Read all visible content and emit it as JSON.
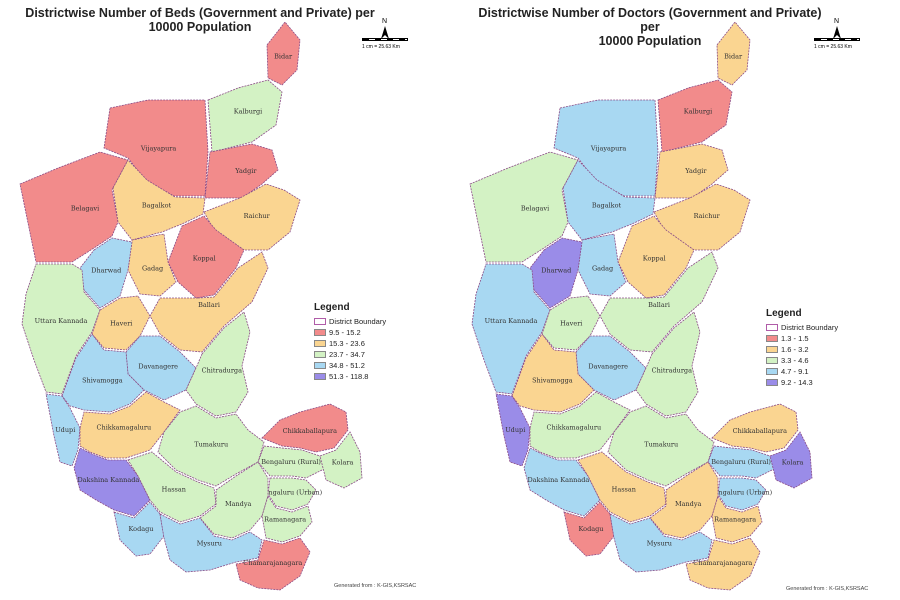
{
  "left": {
    "title_line1": "Districtwise Number of Beds (Government and Private) per",
    "title_line2": "10000 Population",
    "legend": {
      "title": "Legend",
      "boundary": "District Boundary",
      "classes": [
        {
          "label": "9.5 - 15.2",
          "color": "#f28b8b"
        },
        {
          "label": "15.3 - 23.6",
          "color": "#fad591"
        },
        {
          "label": "23.7 - 34.7",
          "color": "#d3f2c4"
        },
        {
          "label": "34.8 - 51.2",
          "color": "#a8d8f2"
        },
        {
          "label": "51.3 - 118.8",
          "color": "#9a8ce8"
        }
      ]
    },
    "north": "N",
    "scale": "1 cm = 25.63 Km",
    "footer": "Generated from : K-GIS,KSRSAC",
    "districts": [
      {
        "name": "Bidar",
        "cls": 0
      },
      {
        "name": "Kalburgi",
        "cls": 2
      },
      {
        "name": "Vijayapura",
        "cls": 0
      },
      {
        "name": "Yadgir",
        "cls": 0
      },
      {
        "name": "Belagavi",
        "cls": 0
      },
      {
        "name": "Bagalkot",
        "cls": 1
      },
      {
        "name": "Raichur",
        "cls": 1
      },
      {
        "name": "Koppal",
        "cls": 0
      },
      {
        "name": "Gadag",
        "cls": 1
      },
      {
        "name": "Dharwad",
        "cls": 3
      },
      {
        "name": "Ballari",
        "cls": 1
      },
      {
        "name": "Uttara Kannada",
        "cls": 2
      },
      {
        "name": "Haveri",
        "cls": 1
      },
      {
        "name": "Davanagere",
        "cls": 3
      },
      {
        "name": "Chitradurga",
        "cls": 2
      },
      {
        "name": "Shivamogga",
        "cls": 3
      },
      {
        "name": "Udupi",
        "cls": 3
      },
      {
        "name": "Chikkamagaluru",
        "cls": 1
      },
      {
        "name": "Tumakuru",
        "cls": 2
      },
      {
        "name": "Chikkaballapura",
        "cls": 0
      },
      {
        "name": "Bengaluru (Rural)",
        "cls": 2
      },
      {
        "name": "Kolara",
        "cls": 2
      },
      {
        "name": "Dakshina Kannada",
        "cls": 4
      },
      {
        "name": "Hassan",
        "cls": 2
      },
      {
        "name": "Bengaluru (Urban)",
        "cls": 2
      },
      {
        "name": "Mandya",
        "cls": 2
      },
      {
        "name": "Ramanagara",
        "cls": 2
      },
      {
        "name": "Kodagu",
        "cls": 3
      },
      {
        "name": "Mysuru",
        "cls": 3
      },
      {
        "name": "Chamarajanagara",
        "cls": 0
      }
    ]
  },
  "right": {
    "title_line1": "Districtwise Number of Doctors (Government and Private) per",
    "title_line2": "10000 Population",
    "legend": {
      "title": "Legend",
      "boundary": "District Boundary",
      "classes": [
        {
          "label": "1.3 - 1.5",
          "color": "#f28b8b"
        },
        {
          "label": "1.6 - 3.2",
          "color": "#fad591"
        },
        {
          "label": "3.3 - 4.6",
          "color": "#d3f2c4"
        },
        {
          "label": "4.7 - 9.1",
          "color": "#a8d8f2"
        },
        {
          "label": "9.2 - 14.3",
          "color": "#9a8ce8"
        }
      ]
    },
    "north": "N",
    "scale": "1 cm = 25.63 Km",
    "footer": "Generated from : K-GIS,KSRSAC",
    "districts": [
      {
        "name": "Bidar",
        "cls": 1
      },
      {
        "name": "Kalburgi",
        "cls": 0
      },
      {
        "name": "Vijayapura",
        "cls": 3
      },
      {
        "name": "Yadgir",
        "cls": 1
      },
      {
        "name": "Belagavi",
        "cls": 2
      },
      {
        "name": "Bagalkot",
        "cls": 3
      },
      {
        "name": "Raichur",
        "cls": 1
      },
      {
        "name": "Koppal",
        "cls": 1
      },
      {
        "name": "Gadag",
        "cls": 3
      },
      {
        "name": "Dharwad",
        "cls": 4
      },
      {
        "name": "Ballari",
        "cls": 2
      },
      {
        "name": "Uttara Kannada",
        "cls": 3
      },
      {
        "name": "Haveri",
        "cls": 2
      },
      {
        "name": "Davanagere",
        "cls": 3
      },
      {
        "name": "Chitradurga",
        "cls": 2
      },
      {
        "name": "Shivamogga",
        "cls": 1
      },
      {
        "name": "Udupi",
        "cls": 4
      },
      {
        "name": "Chikkamagaluru",
        "cls": 2
      },
      {
        "name": "Tumakuru",
        "cls": 2
      },
      {
        "name": "Chikkaballapura",
        "cls": 1
      },
      {
        "name": "Bengaluru (Rural)",
        "cls": 3
      },
      {
        "name": "Kolara",
        "cls": 4
      },
      {
        "name": "Dakshina Kannada",
        "cls": 3
      },
      {
        "name": "Hassan",
        "cls": 1
      },
      {
        "name": "Bengaluru (Urban)",
        "cls": 3
      },
      {
        "name": "Mandya",
        "cls": 1
      },
      {
        "name": "Ramanagara",
        "cls": 1
      },
      {
        "name": "Kodagu",
        "cls": 0
      },
      {
        "name": "Mysuru",
        "cls": 3
      },
      {
        "name": "Chamarajanagara",
        "cls": 1
      }
    ]
  }
}
